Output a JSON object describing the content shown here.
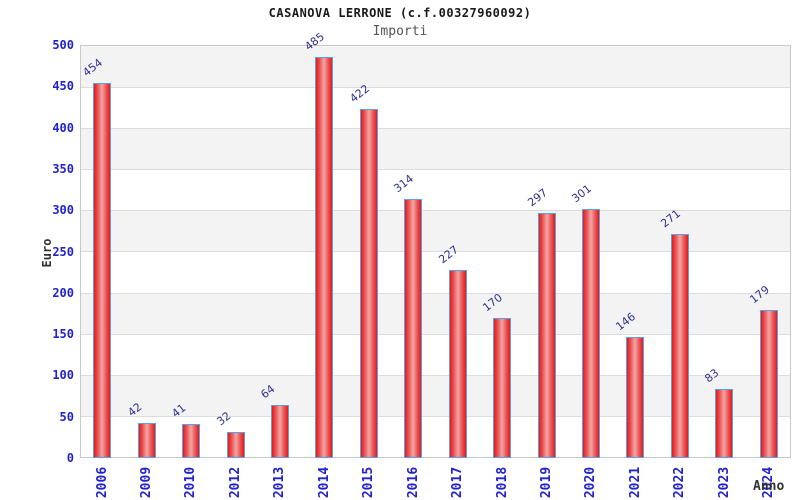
{
  "chart_data": {
    "type": "bar",
    "title": "CASANOVA LERRONE (c.f.00327960092)",
    "subtitle": "Importi",
    "xlabel": "Anno",
    "ylabel": "Euro",
    "categories": [
      "2006",
      "2009",
      "2010",
      "2012",
      "2013",
      "2014",
      "2015",
      "2016",
      "2017",
      "2018",
      "2019",
      "2020",
      "2021",
      "2022",
      "2023",
      "2024"
    ],
    "values": [
      454,
      42,
      41,
      32,
      64,
      485,
      422,
      314,
      227,
      170,
      297,
      301,
      146,
      271,
      83,
      179
    ],
    "ylim": [
      0,
      500
    ],
    "ytick_step": 50,
    "yticks": [
      0,
      50,
      100,
      150,
      200,
      250,
      300,
      350,
      400,
      450,
      500
    ],
    "grid": "horizontal gridlines with alternating gray/white bands",
    "legend_position": "none",
    "colors": {
      "bar_fill": "#e41b1b",
      "bar_mid": "#ea5050",
      "bar_highlight": "#f3a6a6",
      "bar_border": "#5aa2e0",
      "axis_tick_text": "#2222cc",
      "value_label_text": "#30308f",
      "band_fill": "#f3f3f3",
      "gridline": "#dcdcdc",
      "plot_border": "#c9c9c9",
      "title_text": "#1a1a1a",
      "subtitle_text": "#555555",
      "axis_title_text": "#333333"
    }
  }
}
